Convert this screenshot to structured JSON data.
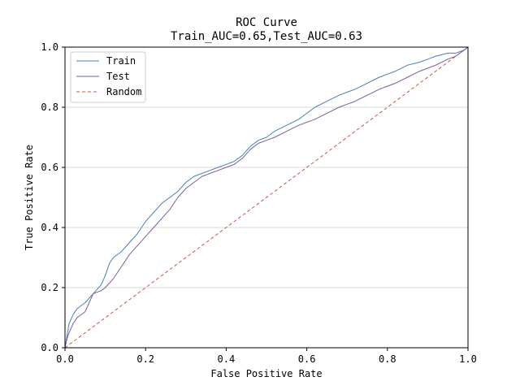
{
  "chart_data": {
    "type": "line",
    "title": "ROC Curve",
    "subtitle": "Train_AUC=0.65,Test_AUC=0.63",
    "xlabel": "False Positive Rate",
    "ylabel": "True Positive Rate",
    "xlim": [
      0,
      1
    ],
    "ylim": [
      0,
      1
    ],
    "xticks": [
      "0.0",
      "0.2",
      "0.4",
      "0.6",
      "0.8",
      "1.0"
    ],
    "yticks": [
      "0.0",
      "0.2",
      "0.4",
      "0.6",
      "0.8",
      "1.0"
    ],
    "grid": "horizontal",
    "legend_position": "top-left",
    "series": [
      {
        "name": "Train",
        "color": "#4a7fb5",
        "style": "solid",
        "x": [
          0.0,
          0.005,
          0.01,
          0.02,
          0.03,
          0.05,
          0.07,
          0.09,
          0.1,
          0.11,
          0.12,
          0.14,
          0.16,
          0.18,
          0.2,
          0.22,
          0.24,
          0.26,
          0.28,
          0.3,
          0.32,
          0.34,
          0.36,
          0.38,
          0.4,
          0.42,
          0.44,
          0.46,
          0.48,
          0.5,
          0.52,
          0.55,
          0.58,
          0.6,
          0.62,
          0.65,
          0.68,
          0.7,
          0.72,
          0.75,
          0.78,
          0.8,
          0.82,
          0.85,
          0.88,
          0.9,
          0.92,
          0.95,
          0.97,
          0.99,
          1.0
        ],
        "y": [
          0.0,
          0.04,
          0.08,
          0.11,
          0.13,
          0.15,
          0.18,
          0.21,
          0.24,
          0.28,
          0.3,
          0.32,
          0.35,
          0.38,
          0.42,
          0.45,
          0.48,
          0.5,
          0.52,
          0.55,
          0.57,
          0.58,
          0.59,
          0.6,
          0.61,
          0.62,
          0.64,
          0.67,
          0.69,
          0.7,
          0.72,
          0.74,
          0.76,
          0.78,
          0.8,
          0.82,
          0.84,
          0.85,
          0.86,
          0.88,
          0.9,
          0.91,
          0.92,
          0.94,
          0.95,
          0.96,
          0.97,
          0.98,
          0.98,
          0.99,
          1.0
        ]
      },
      {
        "name": "Test",
        "color": "#7c5c9c",
        "style": "solid",
        "x": [
          0.0,
          0.005,
          0.01,
          0.02,
          0.03,
          0.05,
          0.06,
          0.07,
          0.09,
          0.1,
          0.12,
          0.14,
          0.16,
          0.18,
          0.2,
          0.22,
          0.24,
          0.26,
          0.28,
          0.3,
          0.32,
          0.34,
          0.36,
          0.38,
          0.4,
          0.42,
          0.44,
          0.46,
          0.48,
          0.5,
          0.52,
          0.55,
          0.58,
          0.6,
          0.62,
          0.65,
          0.68,
          0.7,
          0.72,
          0.75,
          0.78,
          0.8,
          0.82,
          0.85,
          0.88,
          0.9,
          0.92,
          0.95,
          0.97,
          0.99,
          1.0
        ],
        "y": [
          0.0,
          0.03,
          0.05,
          0.08,
          0.1,
          0.12,
          0.15,
          0.18,
          0.19,
          0.2,
          0.23,
          0.27,
          0.31,
          0.34,
          0.37,
          0.4,
          0.43,
          0.46,
          0.5,
          0.53,
          0.55,
          0.57,
          0.58,
          0.59,
          0.6,
          0.61,
          0.63,
          0.66,
          0.68,
          0.69,
          0.7,
          0.72,
          0.74,
          0.75,
          0.76,
          0.78,
          0.8,
          0.81,
          0.82,
          0.84,
          0.86,
          0.87,
          0.88,
          0.9,
          0.92,
          0.93,
          0.94,
          0.96,
          0.97,
          0.99,
          1.0
        ]
      },
      {
        "name": "Random",
        "color": "#d0524a",
        "style": "dashed",
        "x": [
          0,
          1
        ],
        "y": [
          0,
          1
        ]
      }
    ]
  }
}
